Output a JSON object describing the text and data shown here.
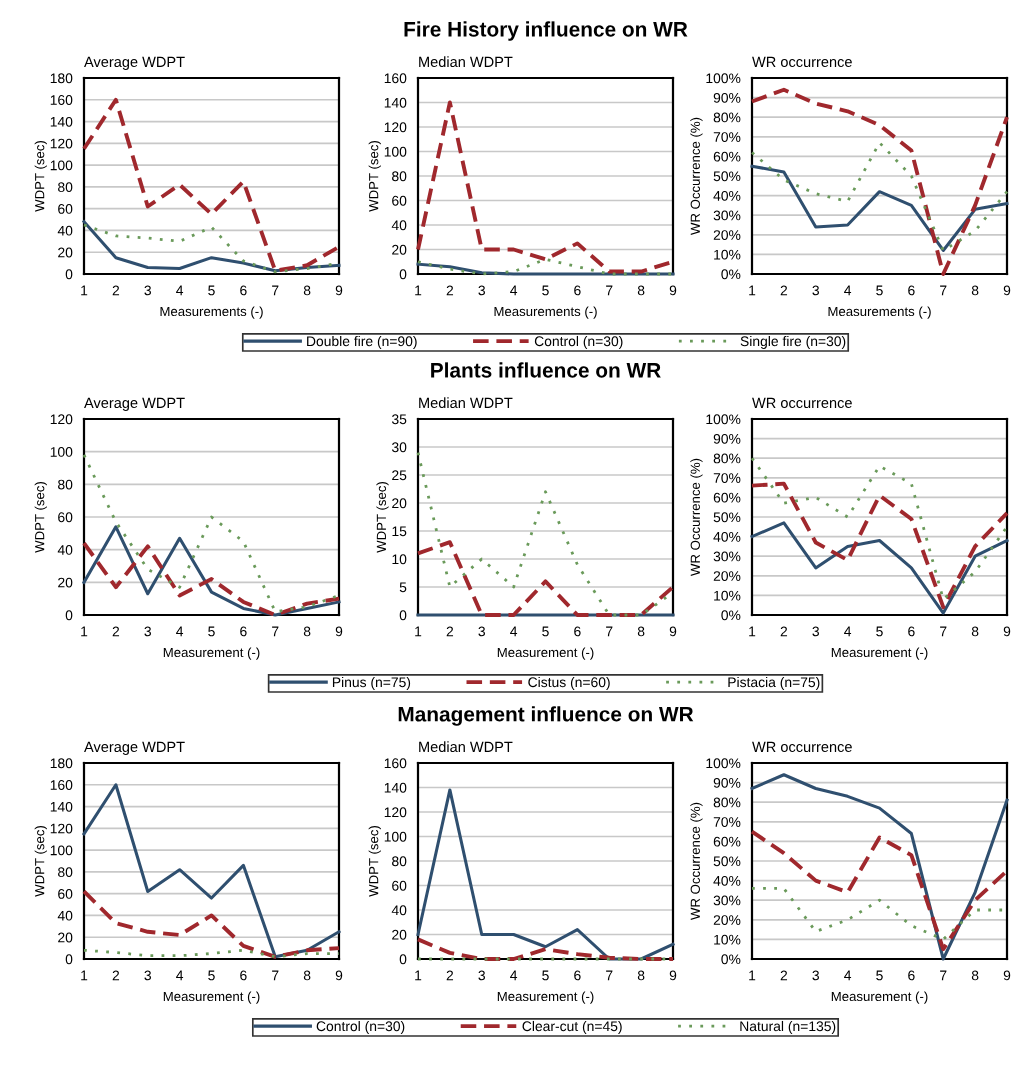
{
  "chart_data": [
    {
      "type": "line",
      "title": "Average WDPT",
      "xlabel": "Measurements (-)",
      "ylabel": "WDPT (sec)",
      "categories": [
        "1",
        "2",
        "3",
        "4",
        "5",
        "6",
        "7",
        "8",
        "9"
      ],
      "ylim": [
        0,
        180
      ],
      "yticks": [
        0,
        20,
        40,
        60,
        80,
        100,
        120,
        140,
        160,
        180
      ],
      "grid": "y",
      "series": [
        {
          "color": "#2f4f6f",
          "line_style": "solid",
          "values": [
            48,
            15,
            6,
            5,
            15,
            10,
            3,
            6,
            8
          ]
        },
        {
          "color": "#a0282d",
          "line_style": "dashed",
          "values": [
            115,
            160,
            62,
            82,
            55,
            85,
            3,
            8,
            25
          ]
        },
        {
          "color": "#6a9a5a",
          "line_style": "dotted",
          "values": [
            45,
            35,
            33,
            30,
            43,
            12,
            2,
            5,
            10
          ]
        }
      ]
    },
    {
      "type": "line",
      "title": "Median WDPT",
      "xlabel": "Measurements (-)",
      "ylabel": "WDPT (sec)",
      "categories": [
        "1",
        "2",
        "3",
        "4",
        "5",
        "6",
        "7",
        "8",
        "9"
      ],
      "ylim": [
        0,
        160
      ],
      "yticks": [
        0,
        20,
        40,
        60,
        80,
        100,
        120,
        140,
        160
      ],
      "grid": "y",
      "legend": "bottom",
      "annotations": [
        "Fire History influence on WR"
      ],
      "series": [
        {
          "name": "Double fire (n=90)",
          "color": "#2f4f6f",
          "line_style": "solid",
          "values": [
            8,
            6,
            1,
            0,
            0,
            0,
            0,
            0,
            0
          ]
        },
        {
          "name": "Control (n=30)",
          "color": "#a0282d",
          "line_style": "dashed",
          "values": [
            20,
            140,
            20,
            20,
            12,
            25,
            2,
            2,
            10
          ]
        },
        {
          "name": "Single fire (n=30)",
          "color": "#6a9a5a",
          "line_style": "dotted",
          "values": [
            10,
            4,
            0,
            2,
            12,
            6,
            0,
            0,
            0
          ]
        }
      ]
    },
    {
      "type": "line",
      "title": "WR occurrence",
      "xlabel": "Measurements (-)",
      "ylabel": "WR Occurrence (%)",
      "categories": [
        "1",
        "2",
        "3",
        "4",
        "5",
        "6",
        "7",
        "8",
        "9"
      ],
      "ylim": [
        0,
        100
      ],
      "yticks": [
        {
          "value": 0,
          "label": "0%"
        },
        {
          "value": 10,
          "label": "10%"
        },
        {
          "value": 20,
          "label": "20%"
        },
        {
          "value": 30,
          "label": "30%"
        },
        {
          "value": 40,
          "label": "40%"
        },
        {
          "value": 50,
          "label": "50%"
        },
        {
          "value": 60,
          "label": "60%"
        },
        {
          "value": 70,
          "label": "70%"
        },
        {
          "value": 80,
          "label": "80%"
        },
        {
          "value": 90,
          "label": "90%"
        },
        {
          "value": 100,
          "label": "100%"
        }
      ],
      "grid": "y",
      "series": [
        {
          "color": "#2f4f6f",
          "line_style": "solid",
          "values": [
            55,
            52,
            24,
            25,
            42,
            35,
            12,
            33,
            36
          ]
        },
        {
          "color": "#a0282d",
          "line_style": "dashed",
          "values": [
            88,
            94,
            87,
            83,
            76,
            63,
            0,
            35,
            80
          ]
        },
        {
          "color": "#6a9a5a",
          "line_style": "dotted",
          "values": [
            62,
            48,
            41,
            37,
            67,
            50,
            12,
            22,
            42
          ]
        }
      ]
    },
    {
      "type": "line",
      "title": "Average WDPT",
      "xlabel": "Measurement (-)",
      "ylabel": "WDPT (sec)",
      "categories": [
        "1",
        "2",
        "3",
        "4",
        "5",
        "6",
        "7",
        "8",
        "9"
      ],
      "ylim": [
        0,
        120
      ],
      "yticks": [
        0,
        20,
        40,
        60,
        80,
        100,
        120
      ],
      "grid": "y",
      "series": [
        {
          "color": "#2f4f6f",
          "line_style": "solid",
          "values": [
            20,
            54,
            13,
            47,
            14,
            4,
            0,
            4,
            8
          ]
        },
        {
          "color": "#a0282d",
          "line_style": "dashed",
          "values": [
            44,
            17,
            42,
            12,
            22,
            8,
            0,
            7,
            10
          ]
        },
        {
          "color": "#6a9a5a",
          "line_style": "dotted",
          "values": [
            98,
            57,
            28,
            17,
            60,
            45,
            2,
            5,
            12
          ]
        }
      ]
    },
    {
      "type": "line",
      "title": "Median WDPT",
      "xlabel": "Measurement (-)",
      "ylabel": "WDPT (sec)",
      "categories": [
        "1",
        "2",
        "3",
        "4",
        "5",
        "6",
        "7",
        "8",
        "9"
      ],
      "ylim": [
        0,
        35
      ],
      "yticks": [
        0,
        5,
        10,
        15,
        20,
        25,
        30,
        35
      ],
      "grid": "y",
      "legend": "bottom",
      "annotations": [
        "Plants influence on WR"
      ],
      "series": [
        {
          "name": "Pinus (n=75)",
          "color": "#2f4f6f",
          "line_style": "solid",
          "values": [
            0,
            0,
            0,
            0,
            0,
            0,
            0,
            0,
            0
          ]
        },
        {
          "name": "Cistus (n=60)",
          "color": "#a0282d",
          "line_style": "dashed",
          "values": [
            11,
            13,
            0,
            0,
            6,
            0,
            0,
            0,
            5
          ]
        },
        {
          "name": "Pistacia (n=75)",
          "color": "#6a9a5a",
          "line_style": "dotted",
          "values": [
            29,
            5,
            10,
            5,
            22,
            9,
            0,
            0,
            4
          ]
        }
      ]
    },
    {
      "type": "line",
      "title": "WR occurrence",
      "xlabel": "Measurement (-)",
      "ylabel": "WR Occurrence (%)",
      "categories": [
        "1",
        "2",
        "3",
        "4",
        "5",
        "6",
        "7",
        "8",
        "9"
      ],
      "ylim": [
        0,
        100
      ],
      "yticks": [
        {
          "value": 0,
          "label": "0%"
        },
        {
          "value": 10,
          "label": "10%"
        },
        {
          "value": 20,
          "label": "20%"
        },
        {
          "value": 30,
          "label": "30%"
        },
        {
          "value": 40,
          "label": "40%"
        },
        {
          "value": 50,
          "label": "50%"
        },
        {
          "value": 60,
          "label": "60%"
        },
        {
          "value": 70,
          "label": "70%"
        },
        {
          "value": 80,
          "label": "80%"
        },
        {
          "value": 90,
          "label": "90%"
        },
        {
          "value": 100,
          "label": "100%"
        }
      ],
      "grid": "y",
      "series": [
        {
          "color": "#2f4f6f",
          "line_style": "solid",
          "values": [
            40,
            47,
            24,
            35,
            38,
            24,
            1,
            30,
            38
          ]
        },
        {
          "color": "#a0282d",
          "line_style": "dashed",
          "values": [
            66,
            67,
            37,
            28,
            61,
            49,
            4,
            35,
            52
          ]
        },
        {
          "color": "#6a9a5a",
          "line_style": "dotted",
          "values": [
            80,
            57,
            60,
            50,
            76,
            67,
            8,
            22,
            45
          ]
        }
      ]
    },
    {
      "type": "line",
      "title": "Average WDPT",
      "xlabel": "Measurement (-)",
      "ylabel": "WDPT (sec)",
      "categories": [
        "1",
        "2",
        "3",
        "4",
        "5",
        "6",
        "7",
        "8",
        "9"
      ],
      "ylim": [
        0,
        180
      ],
      "yticks": [
        0,
        20,
        40,
        60,
        80,
        100,
        120,
        140,
        160,
        180
      ],
      "grid": "y",
      "series": [
        {
          "color": "#2f4f6f",
          "line_style": "solid",
          "values": [
            115,
            160,
            62,
            82,
            56,
            86,
            2,
            8,
            25
          ]
        },
        {
          "color": "#a0282d",
          "line_style": "dashed",
          "values": [
            62,
            33,
            25,
            22,
            40,
            12,
            2,
            8,
            10
          ]
        },
        {
          "color": "#6a9a5a",
          "line_style": "dotted",
          "values": [
            8,
            6,
            3,
            3,
            5,
            8,
            2,
            5,
            5
          ]
        }
      ]
    },
    {
      "type": "line",
      "title": "Median WDPT",
      "xlabel": "Measurement (-)",
      "ylabel": "WDPT (sec)",
      "categories": [
        "1",
        "2",
        "3",
        "4",
        "5",
        "6",
        "7",
        "8",
        "9"
      ],
      "ylim": [
        0,
        160
      ],
      "yticks": [
        0,
        20,
        40,
        60,
        80,
        100,
        120,
        140,
        160
      ],
      "grid": "y",
      "legend": "bottom",
      "annotations": [
        "Management influence on WR"
      ],
      "series": [
        {
          "name": "Control (n=30)",
          "color": "#2f4f6f",
          "line_style": "solid",
          "values": [
            20,
            138,
            20,
            20,
            10,
            24,
            0,
            0,
            12
          ]
        },
        {
          "name": "Clear-cut (n=45)",
          "color": "#a0282d",
          "line_style": "dashed",
          "values": [
            16,
            5,
            0,
            0,
            8,
            4,
            1,
            0,
            0
          ]
        },
        {
          "name": "Natural (n=135)",
          "color": "#6a9a5a",
          "line_style": "dotted",
          "values": [
            0,
            0,
            0,
            0,
            0,
            0,
            0,
            0,
            0
          ]
        }
      ]
    },
    {
      "type": "line",
      "title": "WR occurrence",
      "xlabel": "Measurement (-)",
      "ylabel": "WR Occurrence (%)",
      "categories": [
        "1",
        "2",
        "3",
        "4",
        "5",
        "6",
        "7",
        "8",
        "9"
      ],
      "ylim": [
        0,
        100
      ],
      "yticks": [
        {
          "value": 0,
          "label": "0%"
        },
        {
          "value": 10,
          "label": "10%"
        },
        {
          "value": 20,
          "label": "20%"
        },
        {
          "value": 30,
          "label": "30%"
        },
        {
          "value": 40,
          "label": "40%"
        },
        {
          "value": 50,
          "label": "50%"
        },
        {
          "value": 60,
          "label": "60%"
        },
        {
          "value": 70,
          "label": "70%"
        },
        {
          "value": 80,
          "label": "80%"
        },
        {
          "value": 90,
          "label": "90%"
        },
        {
          "value": 100,
          "label": "100%"
        }
      ],
      "grid": "y",
      "series": [
        {
          "color": "#2f4f6f",
          "line_style": "solid",
          "values": [
            87,
            94,
            87,
            83,
            77,
            64,
            0,
            34,
            81
          ]
        },
        {
          "color": "#a0282d",
          "line_style": "dashed",
          "values": [
            65,
            54,
            40,
            34,
            62,
            53,
            5,
            30,
            45
          ]
        },
        {
          "color": "#6a9a5a",
          "line_style": "dotted",
          "values": [
            36,
            36,
            14,
            20,
            30,
            17,
            10,
            25,
            25
          ]
        }
      ]
    }
  ]
}
